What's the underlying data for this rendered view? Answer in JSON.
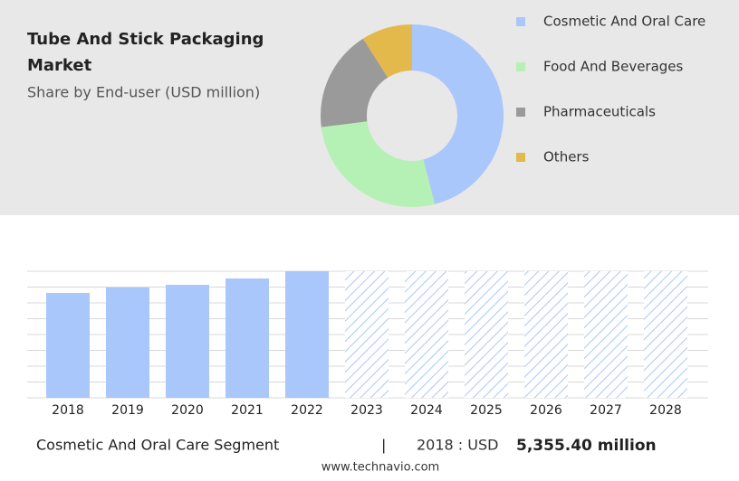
{
  "chart_data": [
    {
      "type": "donut",
      "title": "Tube And Stick Packaging Market",
      "subtitle": "Share by End-user (USD million)",
      "categories": [
        "Cosmetic And Oral Care",
        "Food And Beverages",
        "Pharmaceuticals",
        "Others"
      ],
      "values": [
        46,
        27,
        18,
        9
      ],
      "colors": [
        "#a9c7fb",
        "#b5f0b5",
        "#9a9a9a",
        "#e2b94a"
      ]
    },
    {
      "type": "bar",
      "categories": [
        "2018",
        "2019",
        "2020",
        "2021",
        "2022",
        "2023",
        "2024",
        "2025",
        "2026",
        "2027",
        "2028"
      ],
      "values": [
        5355.4,
        5633,
        5771,
        6094,
        6464,
        null,
        null,
        null,
        null,
        null,
        null
      ],
      "color": "#a9c7fb",
      "ylim": [
        0,
        6464
      ],
      "grid": true
    }
  ],
  "footer": {
    "segment": "Cosmetic And Oral Care Segment",
    "separator": "|",
    "year_label": "2018 : USD",
    "value": "5,355.40 million",
    "source": "www.technavio.com"
  }
}
